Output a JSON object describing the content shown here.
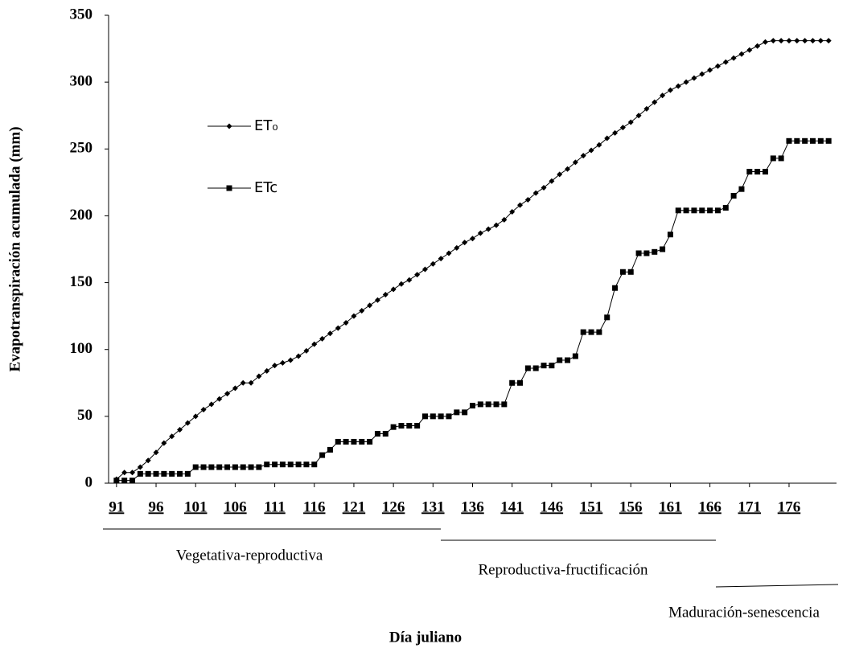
{
  "chart_data": {
    "type": "line",
    "x_label": "Día juliano",
    "y_label": "Evapotranspiración acumulada (mm)",
    "x": [
      91,
      92,
      93,
      94,
      95,
      96,
      97,
      98,
      99,
      100,
      101,
      102,
      103,
      104,
      105,
      106,
      107,
      108,
      109,
      110,
      111,
      112,
      113,
      114,
      115,
      116,
      117,
      118,
      119,
      120,
      121,
      122,
      123,
      124,
      125,
      126,
      127,
      128,
      129,
      130,
      131,
      132,
      133,
      134,
      135,
      136,
      137,
      138,
      139,
      140,
      141,
      142,
      143,
      144,
      145,
      146,
      147,
      148,
      149,
      150,
      151,
      152,
      153,
      154,
      155,
      156,
      157,
      158,
      159,
      160,
      161,
      162,
      163,
      164,
      165,
      166,
      167,
      168,
      169,
      170,
      171,
      172,
      173,
      174,
      175,
      176,
      177,
      178,
      179,
      180,
      181
    ],
    "series": [
      {
        "name": "ET₀",
        "color": "#000000",
        "marker": "diamond",
        "values": [
          3,
          8,
          8,
          12,
          17,
          23,
          30,
          35,
          40,
          45,
          50,
          55,
          59,
          63,
          67,
          71,
          75,
          75,
          80,
          84,
          88,
          90,
          92,
          95,
          99,
          104,
          108,
          112,
          116,
          120,
          125,
          129,
          133,
          137,
          141,
          145,
          149,
          152,
          156,
          160,
          164,
          168,
          172,
          176,
          180,
          183,
          187,
          190,
          193,
          197,
          203,
          208,
          212,
          217,
          221,
          226,
          231,
          235,
          240,
          245,
          249,
          253,
          258,
          262,
          266,
          270,
          275,
          280,
          285,
          290,
          294,
          297,
          300,
          303,
          306,
          309,
          312,
          315,
          318,
          321,
          324,
          327,
          330,
          331,
          331,
          331,
          331,
          331,
          331,
          331,
          331
        ]
      },
      {
        "name": "ETc",
        "color": "#000000",
        "marker": "square",
        "values": [
          2,
          2,
          2,
          7,
          7,
          7,
          7,
          7,
          7,
          7,
          12,
          12,
          12,
          12,
          12,
          12,
          12,
          12,
          12,
          14,
          14,
          14,
          14,
          14,
          14,
          14,
          21,
          25,
          31,
          31,
          31,
          31,
          31,
          37,
          37,
          42,
          43,
          43,
          43,
          50,
          50,
          50,
          50,
          53,
          53,
          58,
          59,
          59,
          59,
          59,
          75,
          75,
          86,
          86,
          88,
          88,
          92,
          92,
          95,
          113,
          113,
          113,
          124,
          146,
          158,
          158,
          172,
          172,
          173,
          175,
          186,
          204,
          204,
          204,
          204,
          204,
          204,
          206,
          215,
          220,
          233,
          233,
          233,
          243,
          243,
          256,
          256,
          256,
          256,
          256,
          256
        ]
      }
    ],
    "xlim": [
      90,
      182
    ],
    "xticks": [
      91,
      96,
      101,
      106,
      111,
      116,
      121,
      126,
      131,
      136,
      141,
      146,
      151,
      156,
      161,
      166,
      171,
      176
    ],
    "ylim": [
      0,
      350
    ],
    "yticks": [
      0,
      50,
      100,
      150,
      200,
      250,
      300,
      350
    ],
    "legend": "upper left",
    "annotations": [
      "Vegetativa-reproductiva",
      "Reproductiva-fructificación",
      "Maduración-senescencia"
    ]
  }
}
